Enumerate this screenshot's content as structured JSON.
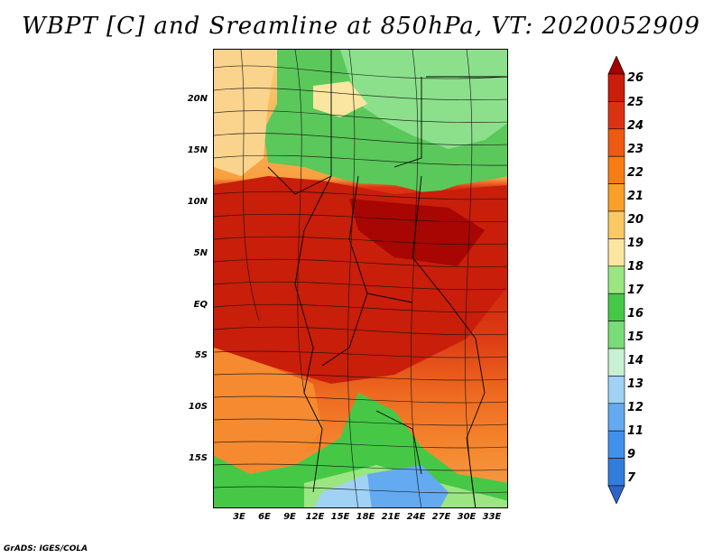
{
  "title": "WBPT [C] and Sreamline at 850hPa, VT: 2020052909",
  "credit": "GrADS: IGES/COLA",
  "map": {
    "lat_labels": [
      "20N",
      "15N",
      "10N",
      "5N",
      "EQ",
      "5S",
      "10S",
      "15S"
    ],
    "lon_labels": [
      "3E",
      "6E",
      "9E",
      "12E",
      "15E",
      "18E",
      "21E",
      "24E",
      "27E",
      "30E",
      "33E"
    ]
  },
  "colorbar": {
    "labels": [
      "26",
      "25",
      "24",
      "23",
      "22",
      "21",
      "20",
      "19",
      "18",
      "17",
      "16",
      "15",
      "14",
      "13",
      "12",
      "11",
      "9",
      "7"
    ],
    "colors": [
      "#a00000",
      "#c81e0a",
      "#dc3214",
      "#ee5a12",
      "#f57d14",
      "#f8a028",
      "#fac864",
      "#fae6a0",
      "#9be682",
      "#46c846",
      "#78dc78",
      "#c8f0d2",
      "#a0d2f5",
      "#64aaf0",
      "#4191eb",
      "#327ddc",
      "#2d64c8"
    ]
  }
}
